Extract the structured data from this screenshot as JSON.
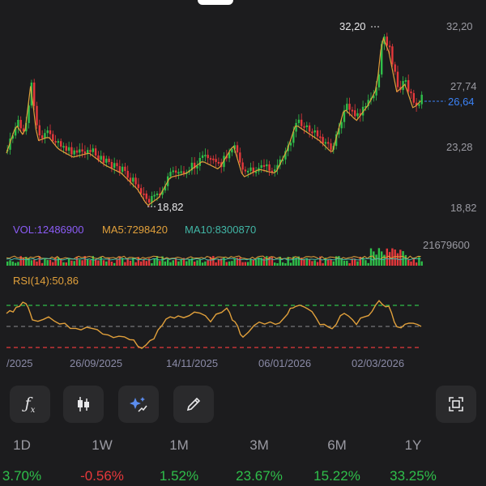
{
  "price_axis": {
    "high": "32,20",
    "l2": "27,74",
    "last": "26,64",
    "l3": "23,28",
    "low": "18,82"
  },
  "annotations": {
    "max": "32,20",
    "min": "18,82"
  },
  "volume": {
    "vol": "VOL:12486900",
    "ma5": "MA5:7298420",
    "ma10": "MA10:8300870",
    "scale": "21679600"
  },
  "rsi": {
    "label": "RSI(14):50,86"
  },
  "dates": [
    "/2025",
    "26/09/2025",
    "14/11/2025",
    "06/01/2026",
    "02/03/2026"
  ],
  "tools": [
    {
      "name": "formula-icon",
      "glyph": "ƒx"
    },
    {
      "name": "candlestick-icon",
      "glyph": "candle"
    },
    {
      "name": "ai-sparkle-icon",
      "glyph": "✨"
    },
    {
      "name": "pencil-icon",
      "glyph": "✎"
    }
  ],
  "periods": [
    {
      "label": "1D",
      "change": "3.70%",
      "trend": "up"
    },
    {
      "label": "1W",
      "change": "-0.56%",
      "trend": "down"
    },
    {
      "label": "1M",
      "change": "1.52%",
      "trend": "up"
    },
    {
      "label": "3M",
      "change": "23.67%",
      "trend": "up"
    },
    {
      "label": "6M",
      "change": "15.22%",
      "trend": "up"
    },
    {
      "label": "1Y",
      "change": "33.25%",
      "trend": "up"
    }
  ],
  "colors": {
    "up": "#2fbf4a",
    "down": "#e5383b",
    "ma": "#e1a03b",
    "rsi": "#e1a03b",
    "vol": "#8b5cf6",
    "ma10": "#41b6a6",
    "last": "#3b82f6"
  }
}
